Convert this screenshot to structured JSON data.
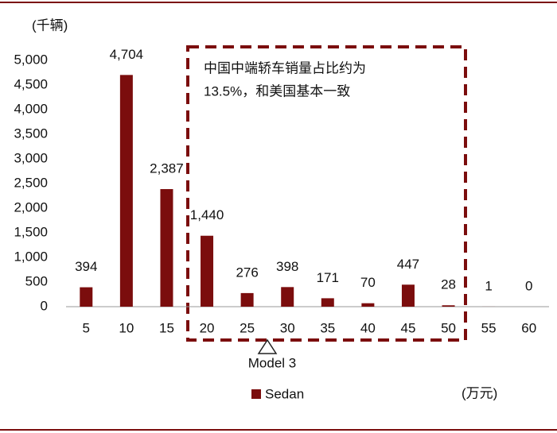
{
  "chart_data": {
    "type": "bar",
    "y_unit": "(千辆)",
    "x_unit": "(万元)",
    "categories": [
      5,
      10,
      15,
      20,
      25,
      30,
      35,
      40,
      45,
      50,
      55,
      60
    ],
    "series": [
      {
        "name": "Sedan",
        "color": "#7b0d0d",
        "values": [
          394,
          4704,
          2387,
          1440,
          276,
          398,
          171,
          70,
          447,
          28,
          1,
          0
        ],
        "value_labels": [
          "394",
          "4,704",
          "2,387",
          "1,440",
          "276",
          "398",
          "171",
          "70",
          "447",
          "28",
          "1",
          "0"
        ]
      }
    ],
    "ylim": [
      0,
      5000
    ],
    "yticks": [
      0,
      500,
      {
        "value": 1000,
        "label": "1,000"
      },
      {
        "value": 1500,
        "label": "1,500"
      },
      {
        "value": 2000,
        "label": "2,000"
      },
      {
        "value": 2500,
        "label": "2,500"
      },
      {
        "value": 3000,
        "label": "3,000"
      },
      {
        "value": 3500,
        "label": "3,500"
      },
      {
        "value": 4000,
        "label": "4,000"
      },
      {
        "value": 4500,
        "label": "4,500"
      },
      {
        "value": 5000,
        "label": "5,000"
      }
    ],
    "annotation": [
      "中国中端轿车销量占比约为",
      "13.5%，和美国基本一致"
    ],
    "marker_label": "Model 3"
  }
}
